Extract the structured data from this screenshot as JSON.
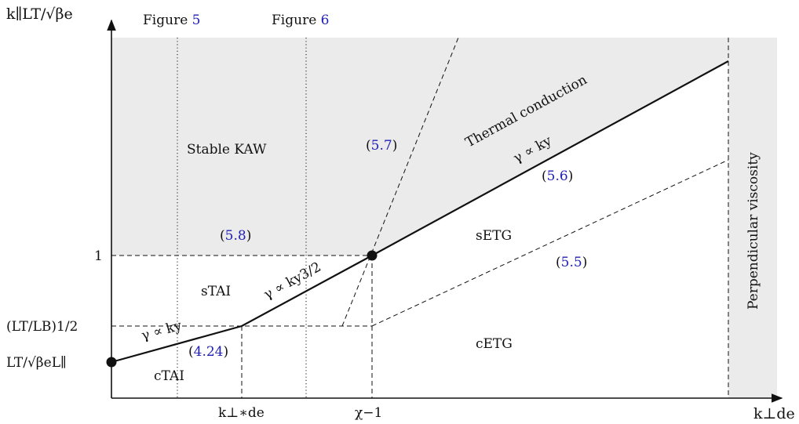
{
  "axes": {
    "y_label": "k∥LT/√βe",
    "x_label": "k⊥de"
  },
  "figure_links": {
    "figure5": {
      "prefix": "Figure ",
      "num": "5"
    },
    "figure6": {
      "prefix": "Figure ",
      "num": "6"
    }
  },
  "y_ticks": {
    "one": "1",
    "lt_lb": "(LT/LB)1/2",
    "lt_beta": "LT/√βeL∥"
  },
  "x_ticks": {
    "kperp_star": "k⊥∗de",
    "chi_inv": "χ−1"
  },
  "regions": {
    "stable_kaw": "Stable KAW",
    "thermal_conduction": "Thermal conduction",
    "perpendicular_viscosity": "Perpendicular viscosity",
    "stai": "sTAI",
    "ctai": "cTAI",
    "setg": "sETG",
    "cetg": "cETG"
  },
  "growth_laws": {
    "ky": "γ ∝ ky",
    "ky_low": "γ ∝ ky",
    "ky32": "γ ∝ ky3/2"
  },
  "equation_refs": {
    "eq57": {
      "open": "(",
      "num": "5.7",
      "close": ")"
    },
    "eq56": {
      "open": "(",
      "num": "5.6",
      "close": ")"
    },
    "eq58": {
      "open": "(",
      "num": "5.8",
      "close": ")"
    },
    "eq55": {
      "open": "(",
      "num": "5.5",
      "close": ")"
    },
    "eq424": {
      "open": "(",
      "num": "4.24",
      "close": ")"
    }
  },
  "colors": {
    "shaded": "#ebebeb",
    "link_blue": "#1f1fb4",
    "ink": "#111111"
  }
}
